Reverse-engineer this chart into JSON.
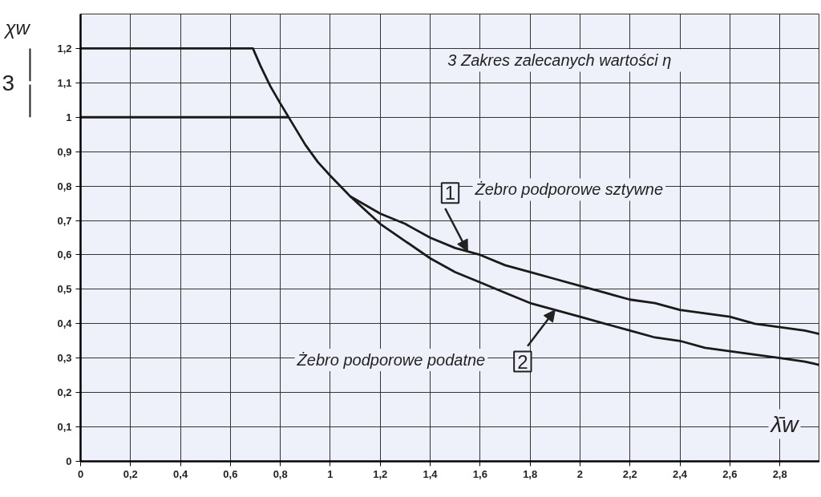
{
  "chart_data": {
    "type": "line",
    "xlabel": "λ̄w",
    "ylabel": "χw",
    "series": [
      {
        "color": "#1a1a1a",
        "x": [
          0,
          0.69,
          0.72,
          0.76,
          0.8,
          0.85,
          0.9,
          0.95,
          1.0,
          1.08,
          1.2,
          1.3,
          1.4,
          1.5,
          1.6,
          1.7,
          1.8,
          1.9,
          2.0,
          2.1,
          2.2,
          2.3,
          2.4,
          2.5,
          2.6,
          2.7,
          2.8,
          2.9,
          2.96
        ],
        "values": [
          1.2,
          1.2,
          1.15,
          1.09,
          1.04,
          0.98,
          0.92,
          0.87,
          0.83,
          0.77,
          0.72,
          0.69,
          0.65,
          0.62,
          0.6,
          0.57,
          0.55,
          0.53,
          0.51,
          0.49,
          0.47,
          0.46,
          0.44,
          0.43,
          0.42,
          0.4,
          0.39,
          0.38,
          0.37
        ]
      },
      {
        "color": "#1a1a1a",
        "x": [
          1.08,
          1.2,
          1.3,
          1.4,
          1.5,
          1.6,
          1.7,
          1.8,
          1.9,
          2.0,
          2.1,
          2.2,
          2.3,
          2.4,
          2.5,
          2.6,
          2.7,
          2.8,
          2.9,
          2.96
        ],
        "values": [
          0.77,
          0.69,
          0.64,
          0.59,
          0.55,
          0.52,
          0.49,
          0.46,
          0.44,
          0.42,
          0.4,
          0.38,
          0.36,
          0.35,
          0.33,
          0.32,
          0.31,
          0.3,
          0.29,
          0.28
        ]
      },
      {
        "color": "#1a1a1a",
        "x": [
          0,
          0.83
        ],
        "values": [
          1.0,
          1.0
        ]
      }
    ],
    "xlim": [
      0,
      2.96
    ],
    "ylim": [
      0,
      1.3
    ],
    "xticks": [
      0,
      {
        "value": 0.2,
        "label": "0,2"
      },
      {
        "value": 0.4,
        "label": "0,4"
      },
      {
        "value": 0.6,
        "label": "0,6"
      },
      {
        "value": 0.8,
        "label": "0,8"
      },
      1,
      {
        "value": 1.2,
        "label": "1,2"
      },
      {
        "value": 1.4,
        "label": "1,4"
      },
      {
        "value": 1.6,
        "label": "1,6"
      },
      {
        "value": 1.8,
        "label": "1,8"
      },
      2,
      {
        "value": 2.2,
        "label": "2,2"
      },
      {
        "value": 2.4,
        "label": "2,4"
      },
      {
        "value": 2.6,
        "label": "2,6"
      },
      {
        "value": 2.8,
        "label": "2,8"
      }
    ],
    "yticks": [
      0,
      {
        "value": 0.1,
        "label": "0,1"
      },
      {
        "value": 0.2,
        "label": "0,2"
      },
      {
        "value": 0.3,
        "label": "0,3"
      },
      {
        "value": 0.4,
        "label": "0,4"
      },
      {
        "value": 0.5,
        "label": "0,5"
      },
      {
        "value": 0.6,
        "label": "0,6"
      },
      {
        "value": 0.7,
        "label": "0,7"
      },
      {
        "value": 0.8,
        "label": "0,8"
      },
      {
        "value": 0.9,
        "label": "0,9"
      },
      1,
      {
        "value": 1.1,
        "label": "1,1"
      },
      {
        "value": 1.2,
        "label": "1,2"
      }
    ],
    "grid": true,
    "annotations": [
      "3   Zakres zalecanych wartości η",
      {
        "text": "1",
        "x": 1.55,
        "y": 0.61
      },
      "Żebro podporowe sztywne",
      {
        "text": "2",
        "x": 1.9,
        "y": 0.44
      },
      "Żebro podporowe podatne",
      "3"
    ]
  }
}
